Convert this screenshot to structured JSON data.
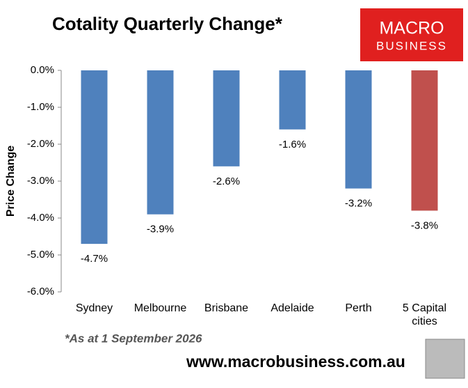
{
  "chart_data": {
    "type": "bar",
    "title": "Cotality Quarterly Change*",
    "y_label": "Price Change",
    "categories": [
      "Sydney",
      "Melbourne",
      "Brisbane",
      "Adelaide",
      "Perth",
      "5 Capital cities"
    ],
    "values": [
      -4.7,
      -3.9,
      -2.6,
      -1.6,
      -3.2,
      -3.8
    ],
    "value_labels": [
      "-4.7%",
      "-3.9%",
      "-2.6%",
      "-1.6%",
      "-3.2%",
      "-3.8%"
    ],
    "colors": [
      "#4f81bd",
      "#4f81bd",
      "#4f81bd",
      "#4f81bd",
      "#4f81bd",
      "#c0504d"
    ],
    "ylim": [
      -6,
      0
    ],
    "yticks": [
      {
        "value": 0,
        "label": "0.0%"
      },
      {
        "value": -1,
        "label": "-1.0%"
      },
      {
        "value": -2,
        "label": "-2.0%"
      },
      {
        "value": -3,
        "label": "-3.0%"
      },
      {
        "value": -4,
        "label": "-4.0%"
      },
      {
        "value": -5,
        "label": "-5.0%"
      },
      {
        "value": -6,
        "label": "-6.0%"
      }
    ],
    "grid": false
  },
  "footnote": "*As at 1 September 2026",
  "website": "www.macrobusiness.com.au",
  "logo": {
    "line1": "MACRO",
    "line2": "BUSINESS"
  }
}
